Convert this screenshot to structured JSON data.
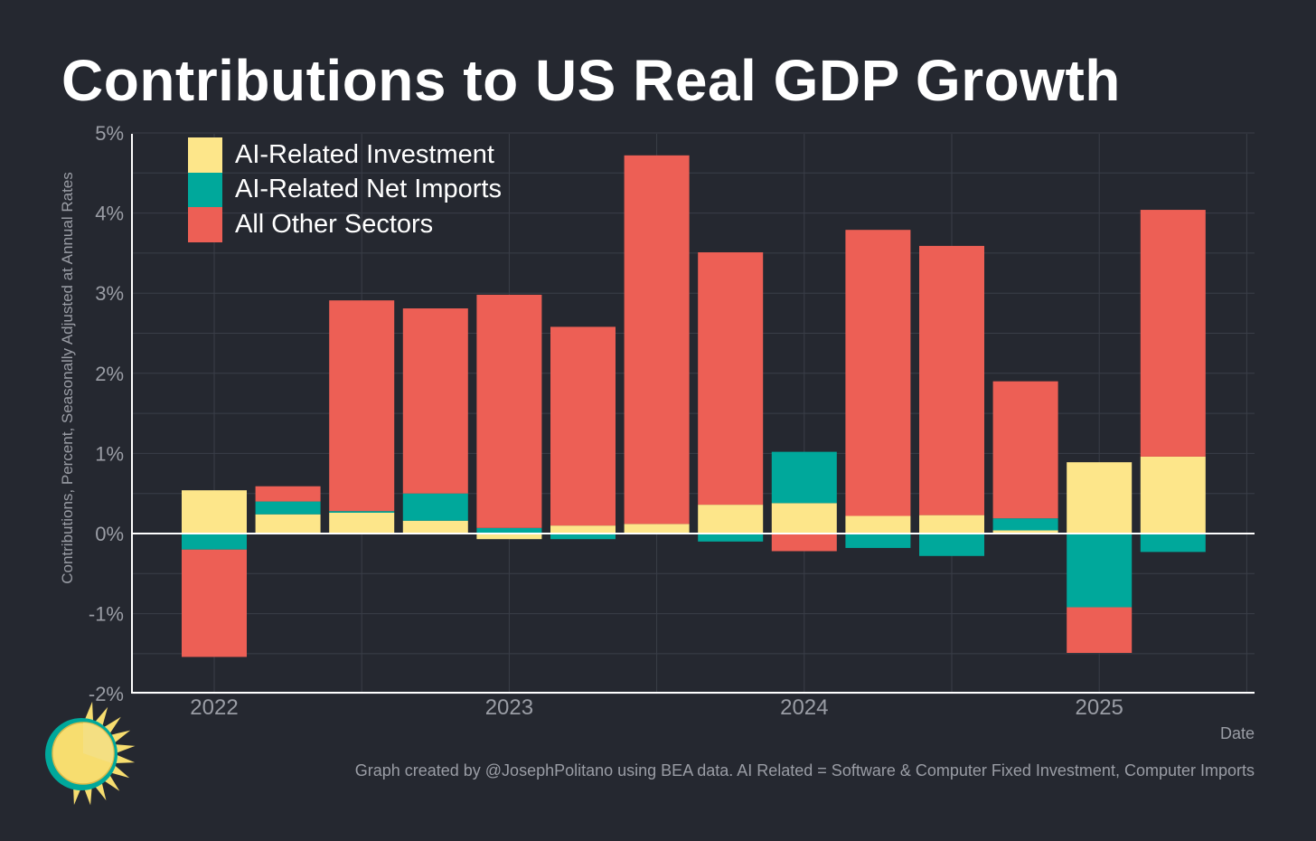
{
  "chart_data": {
    "type": "bar",
    "stacked": true,
    "title": "Contributions to US Real GDP Growth",
    "ylabel": "Contributions, Percent, Seasonally Adjusted at Annual Rates",
    "xlabel": "Date",
    "ylim": [
      -2,
      5
    ],
    "yticks": [
      "5%",
      "4%",
      "3%",
      "2%",
      "1%",
      "0%",
      "-1%",
      "-2%"
    ],
    "ytick_values": [
      5,
      4,
      3,
      2,
      1,
      0,
      -1,
      -2
    ],
    "xticks": [
      "2022",
      "2023",
      "2024",
      "2025"
    ],
    "xtick_values": [
      0,
      4,
      8,
      12
    ],
    "categories": [
      "2022 Q1",
      "2022 Q2",
      "2022 Q3",
      "2022 Q4",
      "2023 Q1",
      "2023 Q2",
      "2023 Q3",
      "2023 Q4",
      "2024 Q1",
      "2024 Q2",
      "2024 Q3",
      "2024 Q4",
      "2025 Q1",
      "2025 Q2"
    ],
    "series": [
      {
        "name": "AI-Related Investment",
        "color": "#fde68a",
        "values": [
          0.54,
          0.24,
          0.26,
          0.16,
          -0.07,
          0.1,
          0.12,
          0.36,
          0.38,
          0.22,
          0.23,
          0.04,
          0.89,
          0.96
        ]
      },
      {
        "name": "AI-Related Net Imports",
        "color": "#00a89b",
        "values": [
          -0.2,
          0.16,
          0.02,
          0.34,
          0.07,
          -0.07,
          0.0,
          -0.1,
          0.64,
          -0.18,
          -0.28,
          0.15,
          -0.92,
          -0.23
        ]
      },
      {
        "name": "All Other Sectors",
        "color": "#ed5f55",
        "values": [
          -1.34,
          0.19,
          2.63,
          2.31,
          2.91,
          2.48,
          4.6,
          3.15,
          -0.22,
          3.57,
          3.36,
          1.71,
          -0.57,
          3.08
        ]
      }
    ],
    "grid": true,
    "legend_position": "top-left"
  },
  "footer": "Graph created by @JosephPolitano using BEA data. AI Related = Software & Computer Fixed Investment, Computer Imports",
  "colors": {
    "background": "#252830",
    "grid": "#3a3e48",
    "axis": "#ffffff",
    "muted_text": "#9a9da5",
    "logo_sun": "#f7dd6f",
    "logo_ring": "#00a89b"
  },
  "logo": {
    "icon": "sun-icon"
  }
}
